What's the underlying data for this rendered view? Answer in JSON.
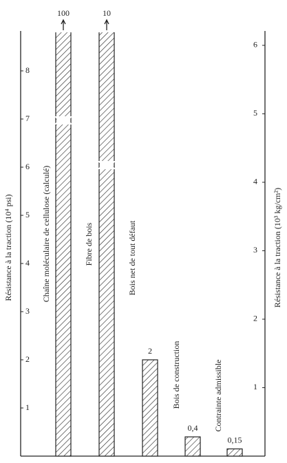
{
  "chart_data": {
    "type": "bar",
    "categories": [
      "Chaîne moléculaire de cellulose (calculé)",
      "Fibre de bois",
      "Bois net de tout défaut",
      "Bois de construction",
      "Contrainte admissible"
    ],
    "values": [
      100,
      10,
      2,
      0.4,
      0.15
    ],
    "value_labels": [
      "100",
      "10",
      "2",
      "0,4",
      "0,15"
    ],
    "y_label": "Résistance à la traction (10⁴ psi)",
    "y2_label": "Résistance à la traction (10³ kg/cm²)",
    "ylim": [
      0,
      8.8
    ],
    "yticks": [
      1,
      2,
      3,
      4,
      5,
      6,
      7,
      8
    ],
    "y2lim": [
      0,
      6.19
    ],
    "y2ticks": [
      1,
      2,
      3,
      4,
      5,
      6
    ],
    "color": "#222222"
  }
}
